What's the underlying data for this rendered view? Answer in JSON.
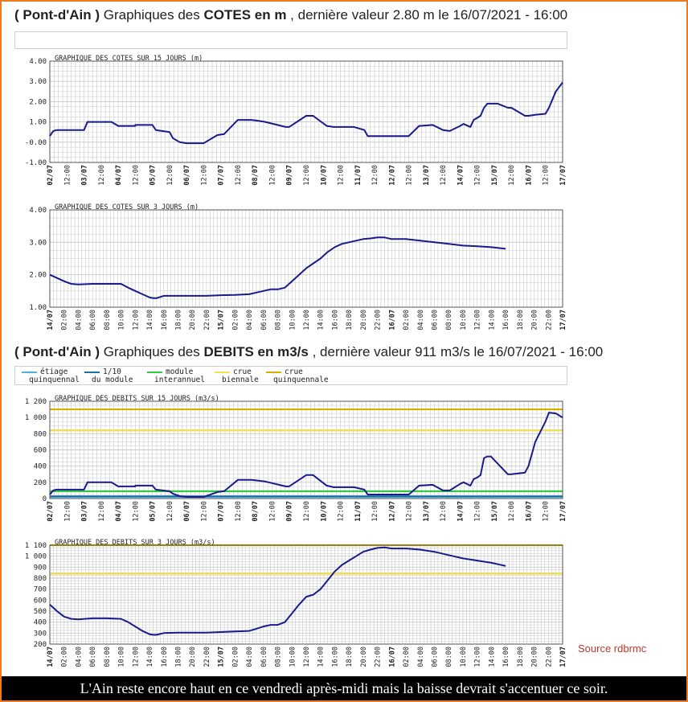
{
  "heading_cotes": {
    "station": "( Pont-d'Ain )",
    "pre": " Graphiques des ",
    "bold": "COTES en m",
    "post": " , dernière valeur 2.80 m le 16/07/2021 - 16:00"
  },
  "heading_debits": {
    "station": "( Pont-d'Ain )",
    "pre": " Graphiques des ",
    "bold": "DEBITS en m3/s",
    "post": " , dernière valeur 911 m3/s le 16/07/2021 - 16:00"
  },
  "legend": [
    {
      "line1": "étiage",
      "line2": "quinquennal",
      "color": "#4fb3e8"
    },
    {
      "line1": "1/10",
      "line2": "du module",
      "color": "#1e6fa3"
    },
    {
      "line1": "module",
      "line2": "interannuel",
      "color": "#2ecc40"
    },
    {
      "line1": "crue",
      "line2": "biennale",
      "color": "#f2e24b"
    },
    {
      "line1": "crue",
      "line2": "quinquennale",
      "color": "#d4b000"
    }
  ],
  "colors": {
    "frame": "#f07a1e",
    "series": "#1a1a8c",
    "grid": "#c8c8c8",
    "source": "#c0392b"
  },
  "source_label": "Source rdbrmc",
  "footer_text": "L'Ain reste encore haut en ce vendredi après-midi mais la baisse devrait s'accentuer ce soir.",
  "chart_data": [
    {
      "type": "line",
      "title": "GRAPHIQUE DES COTES SUR 15 JOURS (m)",
      "ylim": [
        -1.0,
        4.0
      ],
      "yticks": [
        -1.0,
        0.0,
        1.0,
        2.0,
        3.0,
        4.0
      ],
      "ytick_labels": [
        "-1.00",
        "-0.00",
        "1.00",
        "2.00",
        "3.00",
        "4.00"
      ],
      "xlim": [
        0,
        15
      ],
      "xticks": [
        "02/07",
        "12:00",
        "03/07",
        "12:00",
        "04/07",
        "12:00",
        "05/07",
        "12:00",
        "06/07",
        "12:00",
        "07/07",
        "12:00",
        "08/07",
        "12:00",
        "09/07",
        "12:00",
        "10/07",
        "12:00",
        "11/07",
        "12:00",
        "12/07",
        "12:00",
        "13/07",
        "12:00",
        "14/07",
        "12:00",
        "15/07",
        "12:00",
        "16/07",
        "12:00",
        "17/07"
      ],
      "grid": true,
      "series": [
        {
          "x": [
            0,
            0.1,
            0.2,
            0.5,
            0.8,
            1.0,
            1.1,
            1.2,
            1.8,
            2.0,
            2.1,
            2.5,
            2.5,
            3.0,
            3.1,
            3.5,
            3.6,
            3.8,
            4.0,
            4.2,
            4.5,
            4.9,
            5.1,
            5.5,
            5.6,
            5.9,
            6.1,
            6.3,
            6.9,
            7.0,
            7.5,
            7.7,
            8.1,
            8.3,
            8.7,
            8.9,
            9.2,
            9.3,
            10.5,
            10.8,
            11.2,
            11.5,
            11.7,
            12.0,
            12.1,
            12.3,
            12.4,
            12.5,
            12.6,
            12.7,
            12.8,
            12.9,
            13.1,
            13.4,
            13.5,
            13.9,
            14.0,
            14.2,
            14.5,
            14.6,
            14.8,
            15.0
          ],
          "y": [
            0.3,
            0.55,
            0.6,
            0.6,
            0.6,
            0.6,
            1.0,
            1.0,
            1.0,
            0.8,
            0.8,
            0.8,
            0.85,
            0.85,
            0.6,
            0.5,
            0.2,
            0.0,
            -0.05,
            -0.05,
            -0.05,
            0.35,
            0.4,
            1.1,
            1.1,
            1.1,
            1.05,
            1.0,
            0.75,
            0.75,
            1.3,
            1.3,
            0.8,
            0.75,
            0.75,
            0.75,
            0.6,
            0.3,
            0.3,
            0.8,
            0.85,
            0.6,
            0.55,
            0.8,
            0.9,
            0.75,
            1.1,
            1.2,
            1.3,
            1.7,
            1.9,
            1.9,
            1.9,
            1.7,
            1.7,
            1.3,
            1.3,
            1.35,
            1.4,
            1.7,
            2.5,
            2.95
          ]
        }
      ]
    },
    {
      "type": "line",
      "title": "GRAPHIQUE DES COTES SUR 3 JOURS (m)",
      "ylim": [
        1.0,
        4.0
      ],
      "yticks": [
        1.0,
        2.0,
        3.0,
        4.0
      ],
      "ytick_labels": [
        "1.00",
        "2.00",
        "3.00",
        "4.00"
      ],
      "xlim": [
        0,
        72
      ],
      "xticks": [
        "14/07",
        "02:00",
        "04:00",
        "06:00",
        "08:00",
        "10:00",
        "12:00",
        "14:00",
        "16:00",
        "18:00",
        "20:00",
        "22:00",
        "15/07",
        "02:00",
        "04:00",
        "06:00",
        "08:00",
        "10:00",
        "12:00",
        "14:00",
        "16:00",
        "18:00",
        "20:00",
        "22:00",
        "16/07",
        "02:00",
        "04:00",
        "06:00",
        "08:00",
        "10:00",
        "12:00",
        "14:00",
        "16:00",
        "18:00",
        "20:00",
        "22:00",
        "17/07"
      ],
      "grid": true,
      "series": [
        {
          "x": [
            0,
            1,
            2,
            3,
            4,
            6,
            8,
            10,
            11,
            12,
            13,
            14,
            14.5,
            15,
            16,
            18,
            20,
            22,
            24,
            26,
            28,
            29,
            30,
            31,
            32,
            33,
            34,
            35,
            36,
            37,
            38,
            39,
            40,
            41,
            42,
            43,
            44,
            45,
            46,
            47,
            48,
            50,
            52,
            54,
            56,
            58,
            60,
            62,
            64
          ],
          "y": [
            2.0,
            1.9,
            1.8,
            1.72,
            1.7,
            1.72,
            1.72,
            1.72,
            1.6,
            1.5,
            1.4,
            1.3,
            1.28,
            1.28,
            1.35,
            1.35,
            1.35,
            1.35,
            1.37,
            1.38,
            1.4,
            1.45,
            1.5,
            1.55,
            1.55,
            1.6,
            1.8,
            2.0,
            2.2,
            2.35,
            2.5,
            2.7,
            2.85,
            2.95,
            3.0,
            3.05,
            3.1,
            3.12,
            3.15,
            3.15,
            3.1,
            3.1,
            3.05,
            3.0,
            2.95,
            2.9,
            2.88,
            2.85,
            2.8
          ]
        }
      ]
    },
    {
      "type": "line",
      "title": "GRAPHIQUE DES DEBITS SUR 15 JOURS (m3/s)",
      "ylim": [
        0,
        1200
      ],
      "yticks": [
        0,
        200,
        400,
        600,
        800,
        1000,
        1200
      ],
      "ytick_labels": [
        "0",
        "200",
        "400",
        "600",
        "800",
        "1 000",
        "1 200"
      ],
      "xlim": [
        0,
        15
      ],
      "xticks": [
        "02/07",
        "12:00",
        "03/07",
        "12:00",
        "04/07",
        "12:00",
        "05/07",
        "12:00",
        "06/07",
        "12:00",
        "07/07",
        "12:00",
        "08/07",
        "12:00",
        "09/07",
        "12:00",
        "10/07",
        "12:00",
        "11/07",
        "12:00",
        "12/07",
        "12:00",
        "13/07",
        "12:00",
        "14/07",
        "12:00",
        "15/07",
        "12:00",
        "16/07",
        "12:00",
        "17/07"
      ],
      "grid": true,
      "reference_lines": [
        {
          "value": 20,
          "color": "#4fb3e8"
        },
        {
          "value": 28,
          "color": "#1e6fa3"
        },
        {
          "value": 90,
          "color": "#2ecc40"
        },
        {
          "value": 840,
          "color": "#f2e24b"
        },
        {
          "value": 1100,
          "color": "#d4b000"
        }
      ],
      "series": [
        {
          "x": [
            0,
            0.1,
            0.2,
            0.5,
            0.8,
            1.0,
            1.1,
            1.2,
            1.8,
            2.0,
            2.1,
            2.5,
            2.5,
            3.0,
            3.1,
            3.5,
            3.6,
            3.8,
            4.0,
            4.2,
            4.5,
            4.9,
            5.1,
            5.5,
            5.6,
            5.9,
            6.1,
            6.3,
            6.9,
            7.0,
            7.5,
            7.7,
            8.1,
            8.3,
            8.7,
            8.9,
            9.2,
            9.3,
            10.5,
            10.8,
            11.2,
            11.5,
            11.7,
            12.0,
            12.1,
            12.3,
            12.4,
            12.5,
            12.6,
            12.7,
            12.8,
            12.9,
            13.1,
            13.4,
            13.5,
            13.9,
            14.0,
            14.2,
            14.5,
            14.6,
            14.8,
            15.0
          ],
          "y": [
            50,
            100,
            110,
            110,
            110,
            110,
            200,
            200,
            200,
            150,
            150,
            150,
            160,
            160,
            110,
            90,
            60,
            30,
            20,
            20,
            20,
            80,
            90,
            230,
            230,
            230,
            220,
            210,
            150,
            150,
            290,
            290,
            160,
            140,
            140,
            140,
            110,
            50,
            50,
            160,
            170,
            100,
            100,
            180,
            200,
            160,
            240,
            260,
            290,
            500,
            520,
            520,
            430,
            300,
            300,
            320,
            400,
            700,
            950,
            1060,
            1050,
            1000
          ]
        }
      ]
    },
    {
      "type": "line",
      "title": "GRAPHIQUE DES DEBITS SUR 3 JOURS (m3/s)",
      "ylim": [
        200,
        1100
      ],
      "yticks": [
        200,
        300,
        400,
        500,
        600,
        700,
        800,
        900,
        1000,
        1100
      ],
      "ytick_labels": [
        "200",
        "300",
        "400",
        "500",
        "600",
        "700",
        "800",
        "900",
        "1 000",
        "1 100"
      ],
      "xlim": [
        0,
        72
      ],
      "xticks": [
        "14/07",
        "02:00",
        "04:00",
        "06:00",
        "08:00",
        "10:00",
        "12:00",
        "14:00",
        "16:00",
        "18:00",
        "20:00",
        "22:00",
        "15/07",
        "02:00",
        "04:00",
        "06:00",
        "08:00",
        "10:00",
        "12:00",
        "14:00",
        "16:00",
        "18:00",
        "20:00",
        "22:00",
        "16/07",
        "02:00",
        "04:00",
        "06:00",
        "08:00",
        "10:00",
        "12:00",
        "14:00",
        "16:00",
        "18:00",
        "20:00",
        "22:00",
        "17/07"
      ],
      "grid": true,
      "reference_lines": [
        {
          "value": 840,
          "color": "#f2e24b"
        },
        {
          "value": 1100,
          "color": "#d4b000"
        }
      ],
      "series": [
        {
          "x": [
            0,
            1,
            2,
            3,
            4,
            6,
            8,
            10,
            11,
            12,
            13,
            14,
            14.5,
            15,
            16,
            18,
            20,
            22,
            24,
            26,
            28,
            29,
            30,
            31,
            32,
            33,
            34,
            35,
            36,
            37,
            38,
            39,
            40,
            41,
            42,
            43,
            44,
            45,
            46,
            47,
            48,
            50,
            52,
            54,
            56,
            58,
            60,
            62,
            64
          ],
          "y": [
            560,
            500,
            450,
            430,
            425,
            435,
            435,
            430,
            400,
            360,
            320,
            290,
            285,
            285,
            300,
            305,
            305,
            305,
            310,
            315,
            320,
            340,
            360,
            375,
            375,
            400,
            480,
            560,
            630,
            650,
            700,
            780,
            860,
            920,
            960,
            1000,
            1040,
            1060,
            1075,
            1080,
            1070,
            1070,
            1060,
            1040,
            1010,
            980,
            960,
            940,
            911
          ]
        }
      ]
    }
  ]
}
